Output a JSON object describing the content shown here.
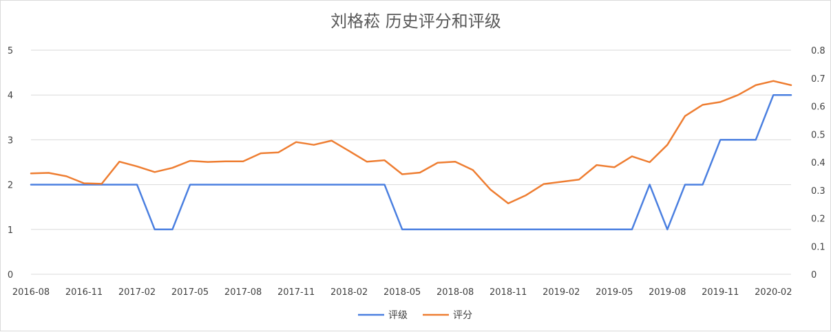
{
  "chart_data": {
    "type": "line",
    "title": "刘格菘 历史评分和评级",
    "x_ticks": [
      "2016-08",
      "2016-11",
      "2017-02",
      "2017-05",
      "2017-08",
      "2017-11",
      "2018-02",
      "2018-05",
      "2018-08",
      "2018-11",
      "2019-02",
      "2019-05",
      "2019-08",
      "2019-11",
      "2020-02"
    ],
    "y_left": {
      "min": 0,
      "max": 5,
      "ticks": [
        0,
        1,
        2,
        3,
        4,
        5
      ]
    },
    "y_right": {
      "min": 0,
      "max": 0.8,
      "ticks": [
        "0",
        "0.1",
        "0.2",
        "0.3",
        "0.4",
        "0.5",
        "0.6",
        "0.7",
        "0.8"
      ]
    },
    "grid": true,
    "legend_position": "bottom",
    "x": [
      "2016-08",
      "2016-09",
      "2016-10",
      "2016-11",
      "2016-12",
      "2017-01",
      "2017-02",
      "2017-03",
      "2017-04",
      "2017-05",
      "2017-06",
      "2017-07",
      "2017-08",
      "2017-09",
      "2017-10",
      "2017-11",
      "2017-12",
      "2018-01",
      "2018-02",
      "2018-03",
      "2018-04",
      "2018-05",
      "2018-06",
      "2018-07",
      "2018-08",
      "2018-09",
      "2018-10",
      "2018-11",
      "2018-12",
      "2019-01",
      "2019-02",
      "2019-03",
      "2019-04",
      "2019-05",
      "2019-06",
      "2019-07",
      "2019-08",
      "2019-09",
      "2019-10",
      "2019-11",
      "2019-12",
      "2020-01",
      "2020-02",
      "2020-03"
    ],
    "series": [
      {
        "name": "评级",
        "axis": "left",
        "color": "#4a7fe0",
        "values": [
          2,
          2,
          2,
          2,
          2,
          2,
          2,
          1,
          1,
          2,
          2,
          2,
          2,
          2,
          2,
          2,
          2,
          2,
          2,
          2,
          2,
          1,
          1,
          1,
          1,
          1,
          1,
          1,
          1,
          1,
          1,
          1,
          1,
          1,
          1,
          2,
          1,
          2,
          2,
          3,
          3,
          3,
          4,
          4
        ]
      },
      {
        "name": "评分",
        "axis": "right",
        "color": "#ee7d31",
        "values": [
          0.36,
          0.362,
          0.35,
          0.325,
          0.323,
          0.402,
          0.385,
          0.365,
          0.38,
          0.405,
          0.401,
          0.403,
          0.403,
          0.432,
          0.435,
          0.472,
          0.462,
          0.477,
          0.44,
          0.402,
          0.407,
          0.357,
          0.363,
          0.398,
          0.402,
          0.372,
          0.302,
          0.253,
          0.282,
          0.322,
          0.33,
          0.338,
          0.39,
          0.382,
          0.421,
          0.4,
          0.462,
          0.565,
          0.605,
          0.615,
          0.64,
          0.675,
          0.69,
          0.675
        ]
      }
    ]
  }
}
